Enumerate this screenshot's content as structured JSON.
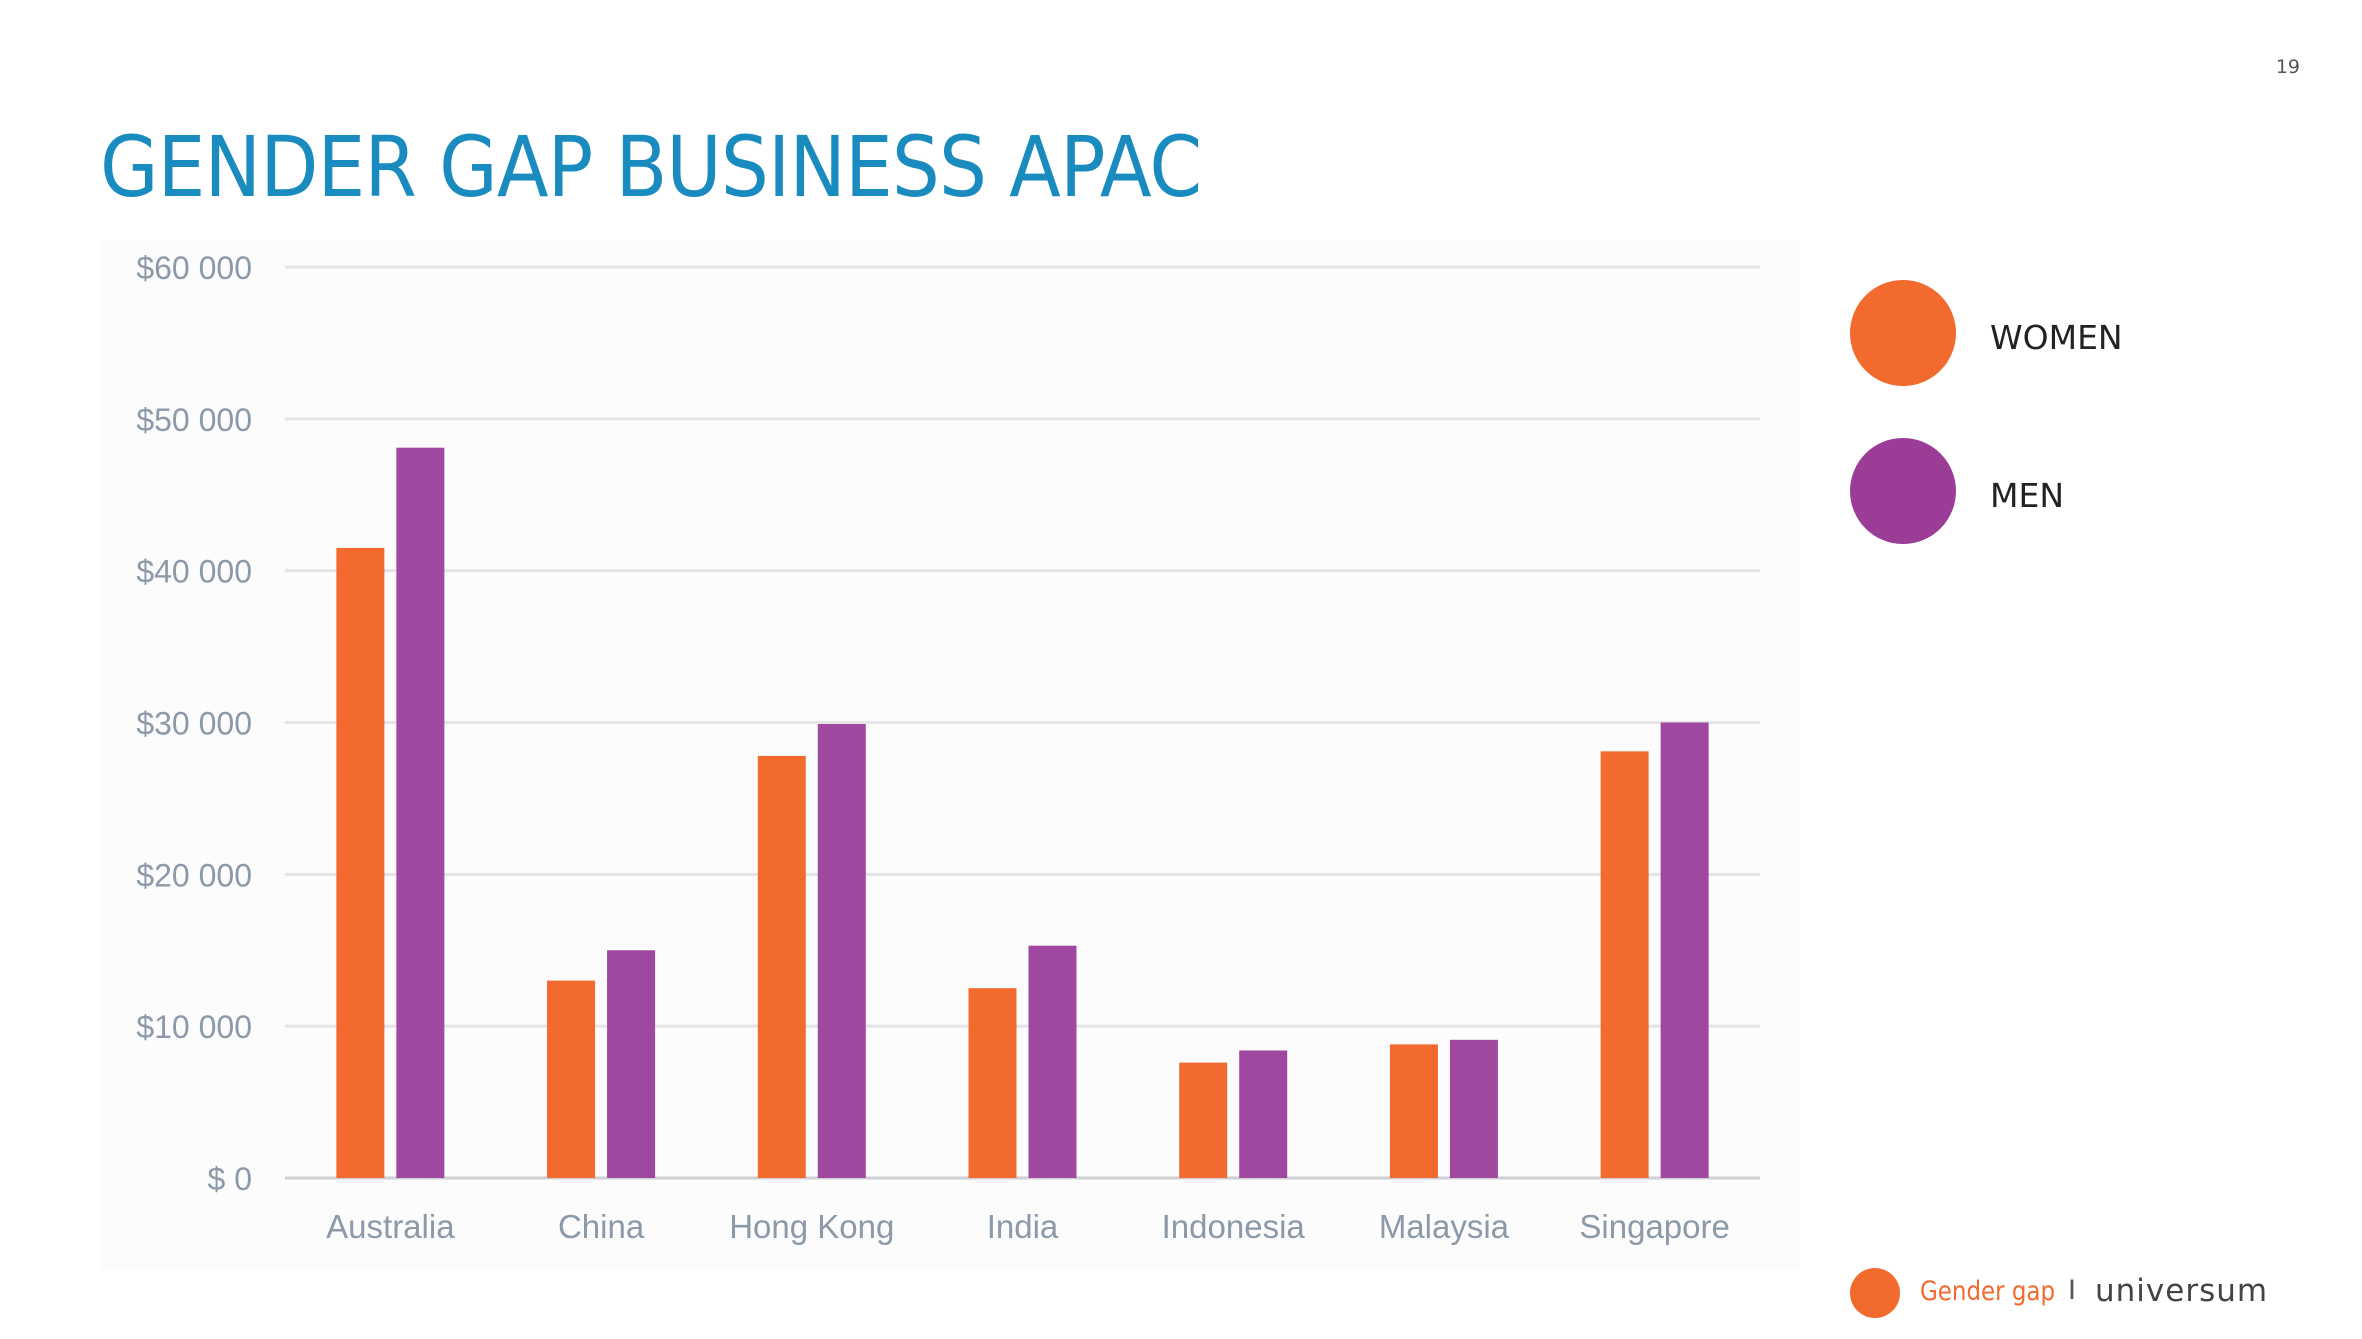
{
  "page": {
    "number": "19",
    "title": "GENDER GAP BUSINESS APAC"
  },
  "legend": {
    "items": [
      {
        "label": "WOMEN",
        "color": "#f26a2e"
      },
      {
        "label": "MEN",
        "color": "#9b3d97"
      }
    ]
  },
  "footer": {
    "label": "Gender gap",
    "separator": "I",
    "brand": "universum",
    "accent_color": "#f26a2e"
  },
  "chart_data": {
    "type": "bar",
    "categories": [
      "Australia",
      "China",
      "Hong Kong",
      "India",
      "Indonesia",
      "Malaysia",
      "Singapore"
    ],
    "series": [
      {
        "name": "WOMEN",
        "color": "#f26a2e",
        "values": [
          41500,
          13000,
          27800,
          12500,
          7600,
          8800,
          28100
        ]
      },
      {
        "name": "MEN",
        "color": "#a0489f",
        "values": [
          48100,
          15000,
          29900,
          15300,
          8400,
          9100,
          30000
        ]
      }
    ],
    "yticks": [
      "$ 0",
      "$10 000",
      "$20 000",
      "$30 000",
      "$40 000",
      "$50 000",
      "$60 000"
    ],
    "ylim": [
      0,
      60000
    ],
    "grid": true,
    "legend_position": "right"
  }
}
